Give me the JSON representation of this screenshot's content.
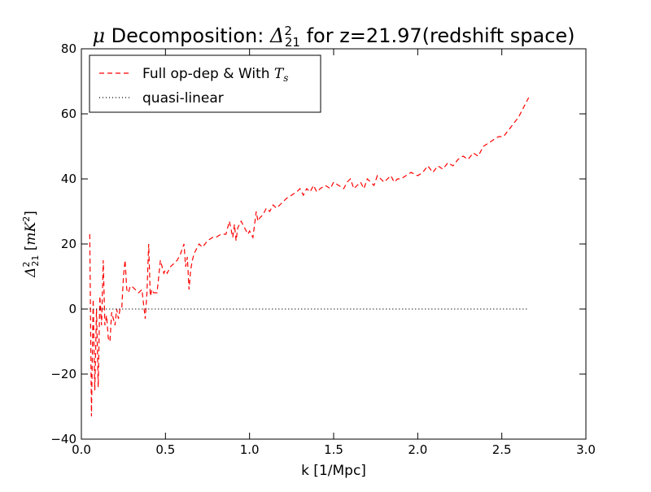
{
  "chart_data": {
    "type": "line",
    "title": "μ Decomposition: Δ²₂₁ for z=21.97(redshift space)",
    "xlabel": "k [1/Mpc]",
    "ylabel": "Δ²₂₁ [mK²]",
    "xlim": [
      0.0,
      3.0
    ],
    "ylim": [
      -40,
      80
    ],
    "x_ticks": [
      "0.0",
      "0.5",
      "1.0",
      "1.5",
      "2.0",
      "2.5",
      "3.0"
    ],
    "y_ticks": [
      "−40",
      "−20",
      "0",
      "20",
      "40",
      "60",
      "80"
    ],
    "grid": false,
    "legend_position": "top-left",
    "series": [
      {
        "name": "Full op-dep & With Ts",
        "style": "dashed",
        "color": "#ff0000",
        "x": [
          0.05,
          0.06,
          0.07,
          0.08,
          0.09,
          0.1,
          0.11,
          0.12,
          0.13,
          0.14,
          0.15,
          0.16,
          0.17,
          0.18,
          0.19,
          0.2,
          0.21,
          0.22,
          0.23,
          0.24,
          0.25,
          0.26,
          0.27,
          0.28,
          0.29,
          0.3,
          0.32,
          0.34,
          0.36,
          0.38,
          0.39,
          0.4,
          0.41,
          0.42,
          0.43,
          0.45,
          0.47,
          0.49,
          0.5,
          0.51,
          0.52,
          0.53,
          0.55,
          0.57,
          0.59,
          0.61,
          0.62,
          0.63,
          0.64,
          0.65,
          0.66,
          0.67,
          0.68,
          0.7,
          0.72,
          0.75,
          0.78,
          0.8,
          0.83,
          0.86,
          0.88,
          0.9,
          0.91,
          0.92,
          0.93,
          0.95,
          0.97,
          0.99,
          1.0,
          1.02,
          1.04,
          1.05,
          1.06,
          1.08,
          1.1,
          1.12,
          1.14,
          1.16,
          1.18,
          1.2,
          1.22,
          1.25,
          1.28,
          1.3,
          1.32,
          1.34,
          1.36,
          1.38,
          1.4,
          1.42,
          1.45,
          1.48,
          1.5,
          1.53,
          1.56,
          1.58,
          1.6,
          1.62,
          1.64,
          1.66,
          1.68,
          1.7,
          1.72,
          1.74,
          1.76,
          1.78,
          1.8,
          1.82,
          1.84,
          1.86,
          1.88,
          1.9,
          1.93,
          1.96,
          2.0,
          2.03,
          2.06,
          2.09,
          2.12,
          2.15,
          2.18,
          2.21,
          2.24,
          2.27,
          2.3,
          2.33,
          2.36,
          2.39,
          2.42,
          2.45,
          2.48,
          2.51,
          2.54,
          2.57,
          2.6,
          2.63,
          2.66
        ],
        "y": [
          23,
          -33,
          3,
          -25,
          0,
          -24,
          4,
          -5,
          15,
          -5,
          -2,
          -9,
          -10,
          -1,
          -3,
          -5,
          0,
          -3,
          0,
          0,
          10,
          15,
          6,
          5,
          7,
          7,
          6,
          5,
          6,
          -3,
          5,
          20,
          4,
          6,
          5,
          5,
          15,
          11,
          12,
          11,
          12,
          13,
          14,
          15,
          17,
          20,
          13,
          16,
          6,
          12,
          15,
          17,
          18,
          20,
          19,
          21,
          22,
          22,
          23,
          23,
          27,
          22,
          26,
          21,
          25,
          27,
          25,
          23,
          24,
          22,
          30,
          27,
          28,
          29,
          31,
          30,
          32,
          31,
          32,
          33,
          34,
          35,
          36,
          37,
          35,
          37,
          36,
          38,
          36,
          37,
          38,
          37,
          39,
          38,
          37,
          39,
          40,
          37,
          38,
          39,
          37,
          40,
          39,
          38,
          41,
          40,
          39,
          40,
          41,
          39,
          40,
          40,
          41,
          42,
          41,
          42,
          44,
          42,
          44,
          43,
          45,
          44,
          46,
          47,
          46,
          48,
          47,
          50,
          51,
          52,
          53,
          53,
          55,
          57,
          59,
          62,
          65
        ]
      },
      {
        "name": "quasi-linear",
        "style": "dotted",
        "color": "#000000",
        "x": [
          0.05,
          2.66
        ],
        "y": [
          0,
          0
        ]
      }
    ]
  }
}
